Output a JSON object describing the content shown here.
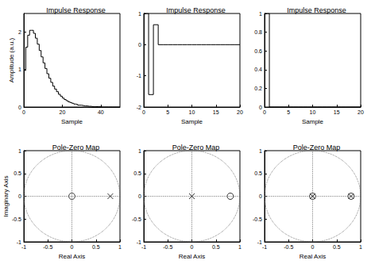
{
  "chart_data": [
    {
      "type": "line",
      "title": "Impulse Response",
      "x_label": "Sample",
      "y_label": "Amplitude (a.u.)",
      "line_style": "steps",
      "color": "#000000",
      "x": [
        0,
        1,
        2,
        3,
        4,
        5,
        6,
        7,
        8,
        9,
        10,
        11,
        12,
        13,
        14,
        15,
        16,
        17,
        18,
        19,
        20,
        21,
        22,
        23,
        24,
        25,
        26,
        27,
        28,
        29,
        30,
        31,
        32,
        33,
        34,
        35,
        36,
        37,
        38,
        39,
        40,
        41,
        42,
        43,
        44,
        45,
        46,
        47,
        48,
        49,
        50
      ],
      "values": [
        1,
        1.6,
        1.92,
        2.05,
        2.05,
        1.97,
        1.84,
        1.68,
        1.51,
        1.34,
        1.18,
        1.03,
        0.89,
        0.77,
        0.66,
        0.56,
        0.48,
        0.41,
        0.34,
        0.29,
        0.24,
        0.2,
        0.17,
        0.14,
        0.12,
        0.1,
        0.08,
        0.07,
        0.05,
        0.05,
        0.04,
        0.03,
        0.03,
        0.02,
        0.02,
        0.01,
        0.01,
        0.01,
        0.01,
        0.01,
        0,
        0,
        0,
        0,
        0,
        0,
        0,
        0,
        0,
        0,
        0
      ],
      "xlim": [
        0,
        50
      ],
      "xticks": [
        0,
        20,
        40
      ],
      "ylim": [
        0,
        2.5
      ],
      "yticks": [
        0,
        1,
        2
      ]
    },
    {
      "type": "line",
      "title": "Impulse Response",
      "x_label": "Sample",
      "line_style": "steps",
      "color": "#000000",
      "x": [
        0,
        1,
        2,
        3,
        4,
        5,
        6,
        7,
        8,
        9,
        10,
        11,
        12,
        13,
        14,
        15,
        16,
        17,
        18,
        19,
        20
      ],
      "values": [
        1,
        -1.6,
        0.64,
        0,
        0,
        0,
        0,
        0,
        0,
        0,
        0,
        0,
        0,
        0,
        0,
        0,
        0,
        0,
        0,
        0,
        0
      ],
      "xlim": [
        0,
        20
      ],
      "xticks": [
        0,
        5,
        10,
        15,
        20
      ],
      "ylim": [
        -2,
        1
      ],
      "yticks": [
        -2,
        -1,
        0,
        1
      ]
    },
    {
      "type": "line",
      "title": "Impulse Response",
      "x_label": "Sample",
      "line_style": "steps",
      "color": "#000000",
      "x": [
        0,
        1,
        2,
        3,
        4,
        5,
        6,
        7,
        8,
        9,
        10,
        11,
        12,
        13,
        14,
        15,
        16,
        17,
        18,
        19,
        20
      ],
      "values": [
        1,
        0,
        0,
        0,
        0,
        0,
        0,
        0,
        0,
        0,
        0,
        0,
        0,
        0,
        0,
        0,
        0,
        0,
        0,
        0,
        0
      ],
      "xlim": [
        0,
        20
      ],
      "xticks": [
        0,
        5,
        10,
        15,
        20
      ],
      "ylim": [
        0,
        1
      ],
      "yticks": [
        0,
        0.2,
        0.4,
        0.6,
        0.8,
        1
      ]
    },
    {
      "type": "scatter",
      "title": "Pole-Zero Map",
      "x_label": "Real Axis",
      "y_label": "Imaginary Axis",
      "series": [
        {
          "marker": "o",
          "color": "#000000",
          "x": [
            0
          ],
          "values": [
            0
          ]
        },
        {
          "marker": "x",
          "color": "#000000",
          "x": [
            0.8
          ],
          "values": [
            0
          ]
        }
      ],
      "xlim": [
        -1,
        1
      ],
      "xticks": [
        -1,
        -0.5,
        0,
        0.5,
        1
      ],
      "ylim": [
        -1,
        1
      ],
      "yticks": [
        -1,
        -0.5,
        0,
        0.5,
        1
      ]
    },
    {
      "type": "scatter",
      "title": "Pole-Zero Map",
      "x_label": "Real Axis",
      "series": [
        {
          "marker": "o",
          "color": "#000000",
          "x": [
            0.8
          ],
          "values": [
            0
          ]
        },
        {
          "marker": "x",
          "color": "#000000",
          "x": [
            0
          ],
          "values": [
            0
          ]
        }
      ],
      "xlim": [
        -1,
        1
      ],
      "xticks": [
        -1,
        -0.5,
        0,
        0.5,
        1
      ],
      "ylim": [
        -1,
        1
      ],
      "yticks": [
        -1,
        -0.5,
        0,
        0.5,
        1
      ]
    },
    {
      "type": "scatter",
      "title": "Pole-Zero Map",
      "x_label": "Real Axis",
      "series": [
        {
          "marker": "o",
          "color": "#000000",
          "x": [
            0,
            0.8
          ],
          "values": [
            0,
            0
          ]
        },
        {
          "marker": "x",
          "color": "#000000",
          "x": [
            0,
            0.8
          ],
          "values": [
            0,
            0
          ]
        }
      ],
      "xlim": [
        -1,
        1
      ],
      "xticks": [
        -1,
        -0.5,
        0,
        0.5,
        1
      ],
      "ylim": [
        -1,
        1
      ],
      "yticks": [
        -1,
        -0.5,
        0,
        0.5,
        1
      ]
    }
  ]
}
